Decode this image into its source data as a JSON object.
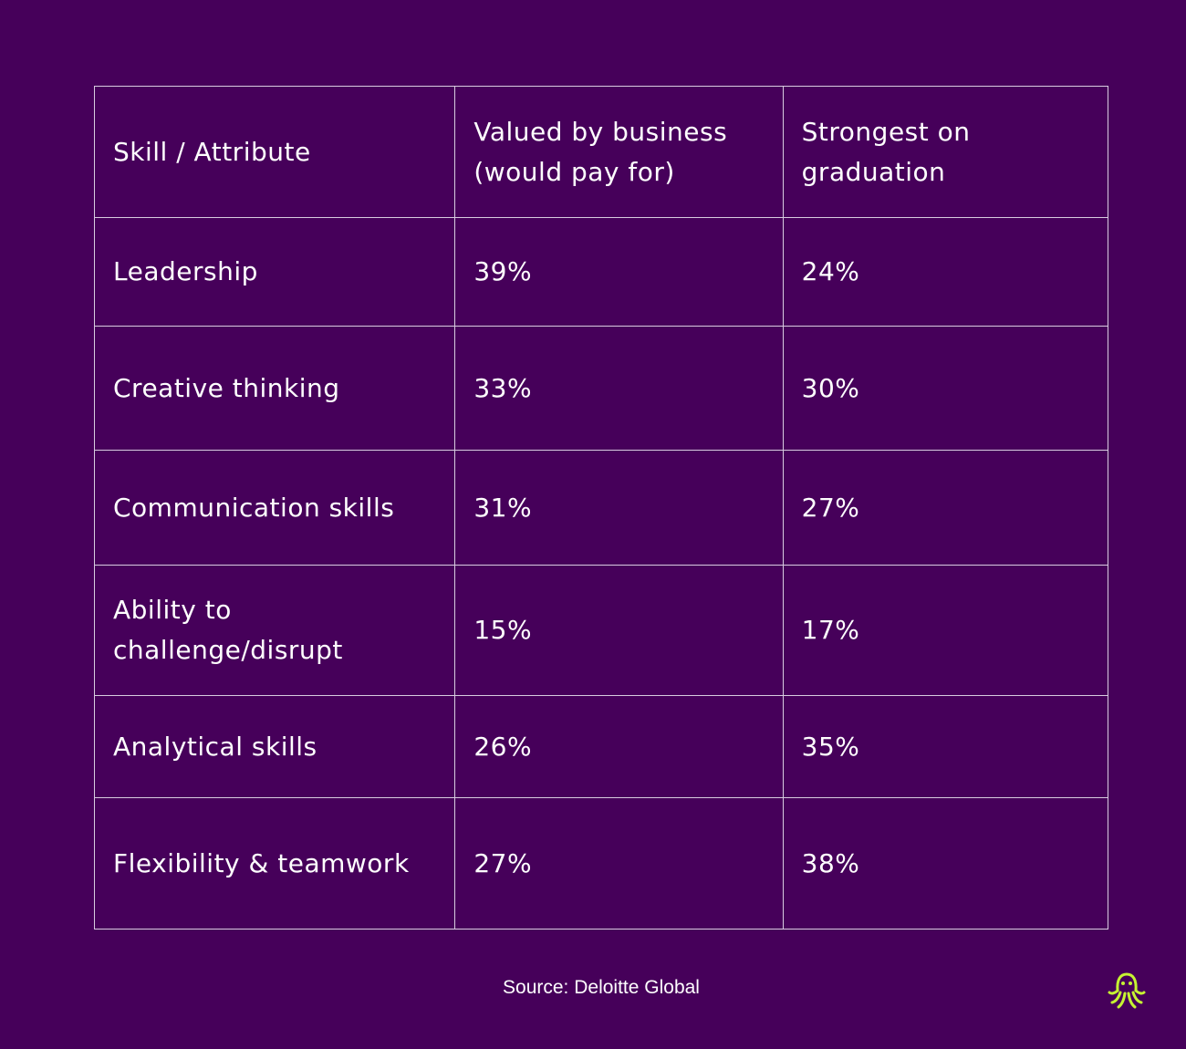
{
  "chart_data": {
    "type": "table",
    "columns": [
      "Skill / Attribute",
      "Valued by business (would pay for)",
      "Strongest on graduation"
    ],
    "rows": [
      {
        "skill": "Leadership",
        "valued": "39%",
        "strongest": "24%"
      },
      {
        "skill": "Creative thinking",
        "valued": "33%",
        "strongest": "30%"
      },
      {
        "skill": "Communication skills",
        "valued": "31%",
        "strongest": "27%"
      },
      {
        "skill": "Ability to challenge/disrupt",
        "valued": "15%",
        "strongest": "17%"
      },
      {
        "skill": "Analytical skills",
        "valued": "26%",
        "strongest": "35%"
      },
      {
        "skill": "Flexibility & teamwork",
        "valued": "27%",
        "strongest": "38%"
      }
    ]
  },
  "footer": {
    "source": "Source: Deloitte Global",
    "logo_icon": "octopus-logo-icon"
  },
  "colors": {
    "background": "#46005a",
    "text": "#ffffff",
    "border": "#d8cce0",
    "logo": "#c6f432"
  }
}
